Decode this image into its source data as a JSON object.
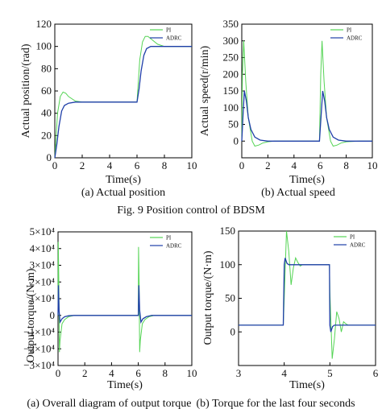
{
  "figure_caption": "Fig. 9 Position control of BDSM",
  "captions": {
    "a_top": "(a) Actual position",
    "b_top": "(b) Actual speed",
    "a_bottom": "(a) Overall diagram of output torque",
    "b_bottom": "(b) Torque for the last four seconds"
  },
  "colors": {
    "PI": "#55d455",
    "ADRC": "#1f3fa8"
  },
  "chart_data": [
    {
      "id": "position",
      "type": "line",
      "xlabel": "Time(s)",
      "ylabel": "Actual position/(rad)",
      "xlim": [
        0,
        10
      ],
      "ylim": [
        0,
        120
      ],
      "xticks": [
        "0",
        "2",
        "4",
        "6",
        "8",
        "10"
      ],
      "yticks": [
        "0",
        "20",
        "40",
        "60",
        "80",
        "100",
        "120"
      ],
      "legend": "top-right",
      "series": [
        {
          "name": "PI",
          "x": [
            0,
            0.2,
            0.4,
            0.6,
            0.8,
            1.0,
            1.5,
            2.0,
            2.5,
            3,
            4,
            5,
            6,
            6.2,
            6.4,
            6.6,
            6.8,
            7.0,
            7.5,
            8,
            9,
            10
          ],
          "y": [
            0,
            40,
            55,
            59,
            58,
            55,
            51,
            50,
            50,
            50,
            50,
            50,
            50,
            88,
            104,
            109,
            109,
            107,
            102,
            100,
            100,
            100
          ]
        },
        {
          "name": "ADRC",
          "x": [
            0,
            0.15,
            0.3,
            0.5,
            0.7,
            1.0,
            1.5,
            2,
            3,
            4,
            5,
            6,
            6.15,
            6.3,
            6.5,
            6.7,
            7.0,
            7.5,
            8,
            9,
            10
          ],
          "y": [
            0,
            12,
            28,
            42,
            47,
            49,
            50,
            50,
            50,
            50,
            50,
            50,
            62,
            78,
            92,
            98,
            100,
            100,
            100,
            100,
            100
          ]
        }
      ]
    },
    {
      "id": "speed",
      "type": "line",
      "xlabel": "Time(s)",
      "ylabel": "Actual speed(r/min)",
      "xlim": [
        0,
        10
      ],
      "ylim": [
        -50,
        350
      ],
      "xticks": [
        "0",
        "2",
        "4",
        "6",
        "8",
        "10"
      ],
      "yticks": [
        "0",
        "50",
        "100",
        "150",
        "200",
        "250",
        "300",
        "350"
      ],
      "legend": "top-right",
      "series": [
        {
          "name": "PI",
          "x": [
            0,
            0.05,
            0.15,
            0.3,
            0.5,
            0.8,
            1.0,
            1.3,
            1.6,
            2.0,
            2.5,
            3,
            4,
            5,
            5.95,
            6.05,
            6.15,
            6.3,
            6.5,
            6.8,
            7.0,
            7.3,
            7.6,
            8,
            9,
            10
          ],
          "y": [
            0,
            200,
            300,
            180,
            70,
            0,
            -15,
            -12,
            -6,
            -2,
            0,
            0,
            0,
            0,
            0,
            200,
            300,
            180,
            70,
            0,
            -15,
            -12,
            -6,
            -2,
            0,
            0
          ]
        },
        {
          "name": "ADRC",
          "x": [
            0,
            0.1,
            0.2,
            0.35,
            0.5,
            0.7,
            1.0,
            1.4,
            2,
            3,
            4,
            5,
            5.95,
            6.05,
            6.2,
            6.35,
            6.5,
            6.7,
            7.0,
            7.4,
            8,
            9,
            10
          ],
          "y": [
            0,
            80,
            150,
            120,
            70,
            35,
            12,
            3,
            0,
            0,
            0,
            0,
            0,
            60,
            150,
            120,
            70,
            35,
            12,
            3,
            0,
            0,
            0
          ]
        }
      ]
    },
    {
      "id": "torque_overall",
      "type": "line",
      "xlabel": "Time(s)",
      "ylabel": "Output torque/(N·m)",
      "xlim": [
        0,
        10
      ],
      "ylim": [
        -30000,
        50000
      ],
      "xticks": [
        "0",
        "2",
        "4",
        "6",
        "8",
        "10"
      ],
      "yticks": [
        "−3×10⁴",
        "−2×10⁴",
        "−1×10⁴",
        "0",
        "1×10⁴",
        "2×10⁴",
        "3×10⁴",
        "4×10⁴",
        "5×10⁴"
      ],
      "legend": "top-right",
      "series": [
        {
          "name": "PI",
          "x": [
            0,
            0.02,
            0.06,
            0.1,
            0.15,
            0.3,
            0.5,
            0.8,
            1.2,
            2,
            4,
            5.98,
            6.0,
            6.02,
            6.06,
            6.1,
            6.15,
            6.3,
            6.5,
            6.8,
            7.2,
            8,
            10
          ],
          "y": [
            0,
            44000,
            20000,
            -22000,
            -15000,
            -5000,
            -2500,
            -800,
            0,
            0,
            0,
            0,
            0,
            41000,
            20000,
            -22000,
            -15000,
            -5000,
            -2500,
            -800,
            0,
            0,
            0
          ]
        },
        {
          "name": "ADRC",
          "x": [
            0,
            0.03,
            0.08,
            0.15,
            0.3,
            0.5,
            0.8,
            1.2,
            2,
            4,
            5.98,
            6.0,
            6.04,
            6.1,
            6.2,
            6.35,
            6.6,
            7.0,
            8,
            10
          ],
          "y": [
            0,
            18000,
            3000,
            -4000,
            -2000,
            -800,
            -200,
            0,
            0,
            0,
            0,
            0,
            18000,
            3000,
            -4000,
            -2000,
            -800,
            0,
            0,
            0
          ]
        }
      ]
    },
    {
      "id": "torque_last",
      "type": "line",
      "xlabel": "Time(s)",
      "ylabel": "Output torque/(N·m)",
      "xlim": [
        3,
        6
      ],
      "ylim": [
        -50,
        150
      ],
      "xticks": [
        "3",
        "4",
        "5",
        "6"
      ],
      "yticks": [
        "0",
        "50",
        "100",
        "150"
      ],
      "legend": "top-right",
      "series": [
        {
          "name": "PI",
          "x": [
            3,
            3.98,
            4.0,
            4.05,
            4.1,
            4.15,
            4.2,
            4.25,
            4.3,
            4.35,
            4.4,
            4.5,
            4.6,
            4.7,
            4.8,
            4.99,
            5.0,
            5.05,
            5.1,
            5.15,
            5.2,
            5.25,
            5.3,
            5.35,
            5.4,
            5.5,
            5.6,
            5.8,
            6
          ],
          "y": [
            10,
            10,
            50,
            150,
            120,
            70,
            95,
            110,
            103,
            98,
            100,
            100,
            100,
            100,
            100,
            100,
            60,
            -40,
            -10,
            30,
            20,
            0,
            15,
            12,
            10,
            10,
            10,
            10,
            10
          ]
        },
        {
          "name": "ADRC",
          "x": [
            3,
            3.98,
            4.0,
            4.02,
            4.06,
            4.1,
            4.2,
            4.3,
            4.5,
            4.8,
            4.99,
            5.0,
            5.02,
            5.06,
            5.1,
            5.2,
            5.3,
            5.5,
            5.8,
            6
          ],
          "y": [
            10,
            10,
            100,
            110,
            102,
            100,
            100,
            100,
            100,
            100,
            100,
            10,
            0,
            8,
            10,
            10,
            10,
            10,
            10,
            10
          ]
        }
      ]
    }
  ]
}
